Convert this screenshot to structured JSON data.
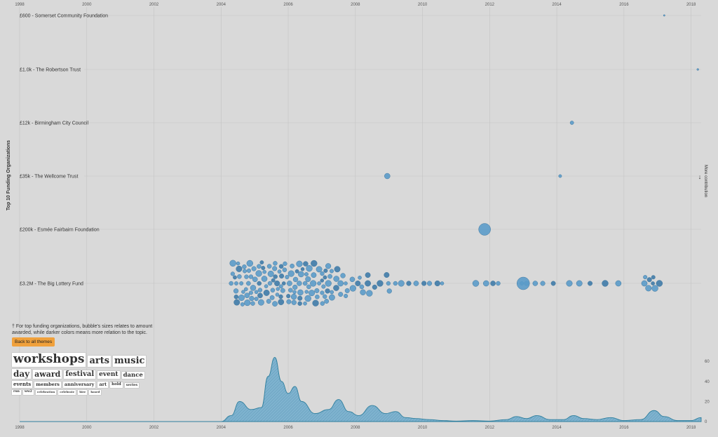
{
  "y_axis_title": "Top 10 Funding Organizations",
  "more_label": "More contribution",
  "more_arrow": "↓",
  "note": "† For top funding organizations, bubble's sizes relates to amount awarded, while darker colors means more relation to the topic.",
  "back_button": "Back to all themes",
  "colors": {
    "bubble": "#5b9bc9",
    "bubble_dark": "#3f7ba8",
    "bubble_stroke": "#2f6a94",
    "area_fill": "#7fb3cf",
    "area_stroke": "#2f7f9e",
    "grid": "#c4c4c4",
    "accent": "#f0a13c"
  },
  "word_cloud": [
    {
      "word": "workshops",
      "weight": 17
    },
    {
      "word": "arts",
      "weight": 13
    },
    {
      "word": "music",
      "weight": 13
    },
    {
      "word": "day",
      "weight": 12
    },
    {
      "word": "award",
      "weight": 11
    },
    {
      "word": "festival",
      "weight": 10
    },
    {
      "word": "event",
      "weight": 9
    },
    {
      "word": "dance",
      "weight": 8.5
    },
    {
      "word": "events",
      "weight": 7
    },
    {
      "word": "members",
      "weight": 6.5
    },
    {
      "word": "anniversary",
      "weight": 6.5
    },
    {
      "word": "art",
      "weight": 6.5
    },
    {
      "word": "hold",
      "weight": 5.5
    },
    {
      "word": "series",
      "weight": 5
    },
    {
      "word": "run",
      "weight": 4.5
    },
    {
      "word": "ww2",
      "weight": 4.5
    },
    {
      "word": "celebration",
      "weight": 4
    },
    {
      "word": "celebrate",
      "weight": 4
    },
    {
      "word": "hire",
      "weight": 4
    },
    {
      "word": "based",
      "weight": 4
    }
  ],
  "chart_data": [
    {
      "type": "scatter",
      "xlabel": "",
      "ylabel": "Top 10 Funding Organizations",
      "xlim": [
        1998,
        2018.3
      ],
      "x_ticks": [
        "1998",
        "2000",
        "2002",
        "2004",
        "2006",
        "2008",
        "2010",
        "2012",
        "2014",
        "2016",
        "2018"
      ],
      "categories": [
        "£600 - Somerset Community Foundation",
        "£1.0k - The Robertson Trust",
        "£12k - Birmingham City Council",
        "£35k - The Wellcome Trust",
        "£200k - Esmée Fairbairn Foundation",
        "£3.2M - The Big Lottery Fund"
      ],
      "series": [
        {
          "org": 0,
          "points": [
            [
              2017.2,
              600
            ]
          ]
        },
        {
          "org": 1,
          "points": [
            [
              2018.2,
              1000
            ]
          ]
        },
        {
          "org": 2,
          "points": [
            [
              2014.45,
              12000
            ]
          ]
        },
        {
          "org": 3,
          "points": [
            [
              2008.95,
              30000
            ],
            [
              2014.1,
              5000
            ]
          ]
        },
        {
          "org": 4,
          "points": [
            [
              2011.85,
              200000
            ]
          ]
        },
        {
          "org": 5,
          "clusters": [
            {
              "x_from": 2004.3,
              "x_to": 2009.2,
              "density": "high",
              "peak": 2005.6
            },
            {
              "x_from": 2009.2,
              "x_to": 2010.6,
              "density": "low"
            },
            {
              "x_from": 2011.4,
              "x_to": 2012.3,
              "density": "sparse"
            },
            {
              "x_from": 2012.8,
              "x_to": 2016.0,
              "density": "sparse",
              "large_point": 2013.0
            },
            {
              "x_from": 2016.6,
              "x_to": 2017.1,
              "density": "medium"
            }
          ],
          "total": "£3.2M"
        }
      ]
    },
    {
      "type": "area",
      "xlim": [
        1998,
        2018.3
      ],
      "ylim": [
        0,
        65
      ],
      "x_ticks": [
        "1998",
        "2000",
        "2002",
        "2004",
        "2006",
        "2008",
        "2010",
        "2012",
        "2014",
        "2016",
        "2018"
      ],
      "y_ticks": [
        "0",
        "20",
        "40",
        "60"
      ],
      "x": [
        1998,
        2004,
        2004.3,
        2004.55,
        2004.9,
        2005.2,
        2005.4,
        2005.6,
        2005.8,
        2006.0,
        2006.2,
        2006.4,
        2006.8,
        2007.2,
        2007.5,
        2007.8,
        2008.1,
        2008.5,
        2008.9,
        2009.2,
        2009.5,
        2009.8,
        2010.2,
        2010.6,
        2011,
        2011.5,
        2012,
        2012.5,
        2012.8,
        2013.1,
        2013.4,
        2013.8,
        2014.2,
        2014.5,
        2014.8,
        2015.2,
        2015.6,
        2016.0,
        2016.5,
        2016.9,
        2017.2,
        2017.6,
        2018.0,
        2018.3
      ],
      "values": [
        0,
        0,
        6,
        20,
        12,
        14,
        45,
        64,
        40,
        28,
        35,
        20,
        8,
        12,
        22,
        10,
        6,
        16,
        8,
        10,
        4,
        3,
        2,
        1,
        0.5,
        1,
        0.5,
        2,
        5,
        3,
        6,
        2,
        2,
        6,
        3,
        2,
        4,
        1,
        2,
        11,
        5,
        1,
        1,
        4
      ]
    }
  ]
}
